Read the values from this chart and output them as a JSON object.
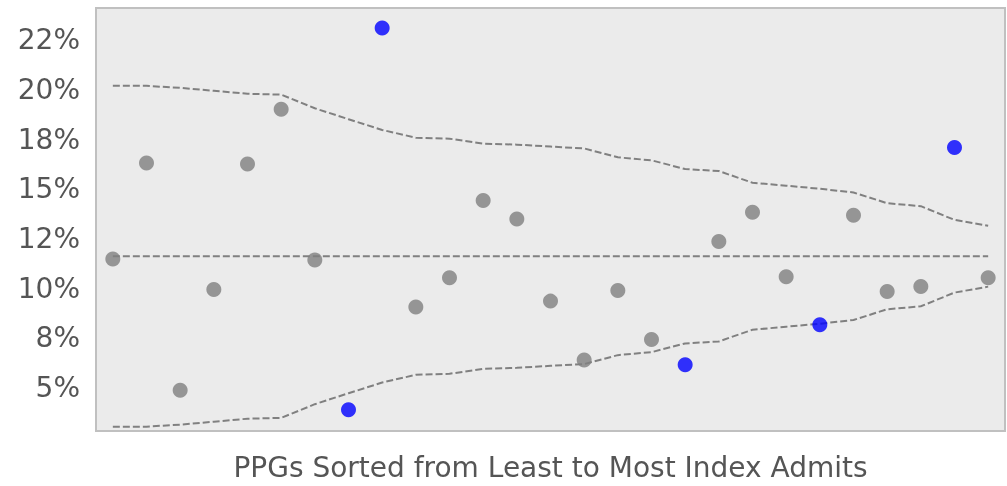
{
  "chart_data": {
    "type": "scatter",
    "xlabel": "PPGs Sorted from Least to Most Index Admits",
    "categories": [
      null,
      null,
      null,
      null,
      null,
      null,
      null,
      null,
      null,
      null,
      null,
      null,
      null,
      null,
      null,
      null,
      null,
      null,
      null,
      null,
      null,
      null,
      null,
      null,
      null,
      null,
      null
    ],
    "ylim": [
      2.8,
      24.1
    ],
    "yticks": [
      {
        "value": 5,
        "label": "5%"
      },
      {
        "value": 7.5,
        "label": "8%"
      },
      {
        "value": 10,
        "label": "10%"
      },
      {
        "value": 12.5,
        "label": "12%"
      },
      {
        "value": 15,
        "label": "15%"
      },
      {
        "value": 17.5,
        "label": "18%"
      },
      {
        "value": 20,
        "label": "20%"
      },
      {
        "value": 22.5,
        "label": "22%"
      }
    ],
    "tick_labels": "y",
    "grid": false,
    "marker": "circle",
    "series": [
      {
        "values": [
          11.46,
          16.29,
          4.85,
          9.93,
          16.24,
          19.0,
          11.41,
          3.87,
          23.09,
          9.04,
          10.52,
          14.41,
          13.48,
          9.34,
          6.38,
          9.88,
          7.41,
          6.13,
          12.34,
          13.82,
          10.57,
          8.15,
          13.67,
          9.83,
          10.08,
          17.07,
          10.52
        ],
        "colors": [
          "#808080",
          "#808080",
          "#808080",
          "#808080",
          "#808080",
          "#808080",
          "#808080",
          "#0000ff",
          "#0000ff",
          "#808080",
          "#808080",
          "#808080",
          "#808080",
          "#808080",
          "#808080",
          "#808080",
          "#808080",
          "#0000ff",
          "#808080",
          "#808080",
          "#808080",
          "#0000ff",
          "#808080",
          "#808080",
          "#808080",
          "#0000ff",
          "#808080"
        ]
      },
      {
        "type": "line",
        "color": "#808080",
        "line_style": "dashed",
        "marker": "none",
        "values": [
          20.18,
          20.18,
          20.08,
          19.93,
          19.78,
          19.74,
          19.05,
          18.5,
          17.96,
          17.57,
          17.52,
          17.27,
          17.22,
          17.12,
          17.03,
          16.58,
          16.43,
          15.99,
          15.89,
          15.3,
          15.15,
          15.0,
          14.81,
          14.27,
          14.12,
          13.43,
          13.13
        ]
      },
      {
        "type": "line",
        "color": "#808080",
        "line_style": "dashed",
        "marker": "none",
        "values": [
          11.6,
          11.6,
          11.6,
          11.6,
          11.6,
          11.6,
          11.6,
          11.6,
          11.6,
          11.6,
          11.6,
          11.6,
          11.6,
          11.6,
          11.6,
          11.6,
          11.6,
          11.6,
          11.6,
          11.6,
          11.6,
          11.6,
          11.6,
          11.6,
          11.6,
          11.6,
          11.6
        ]
      },
      {
        "type": "line",
        "color": "#808080",
        "line_style": "dashed",
        "marker": "none",
        "values": [
          3.02,
          3.02,
          3.12,
          3.27,
          3.42,
          3.46,
          4.15,
          4.7,
          5.24,
          5.63,
          5.68,
          5.93,
          5.98,
          6.08,
          6.17,
          6.62,
          6.77,
          7.21,
          7.31,
          7.9,
          8.05,
          8.2,
          8.39,
          8.93,
          9.08,
          9.77,
          10.07
        ]
      }
    ]
  }
}
